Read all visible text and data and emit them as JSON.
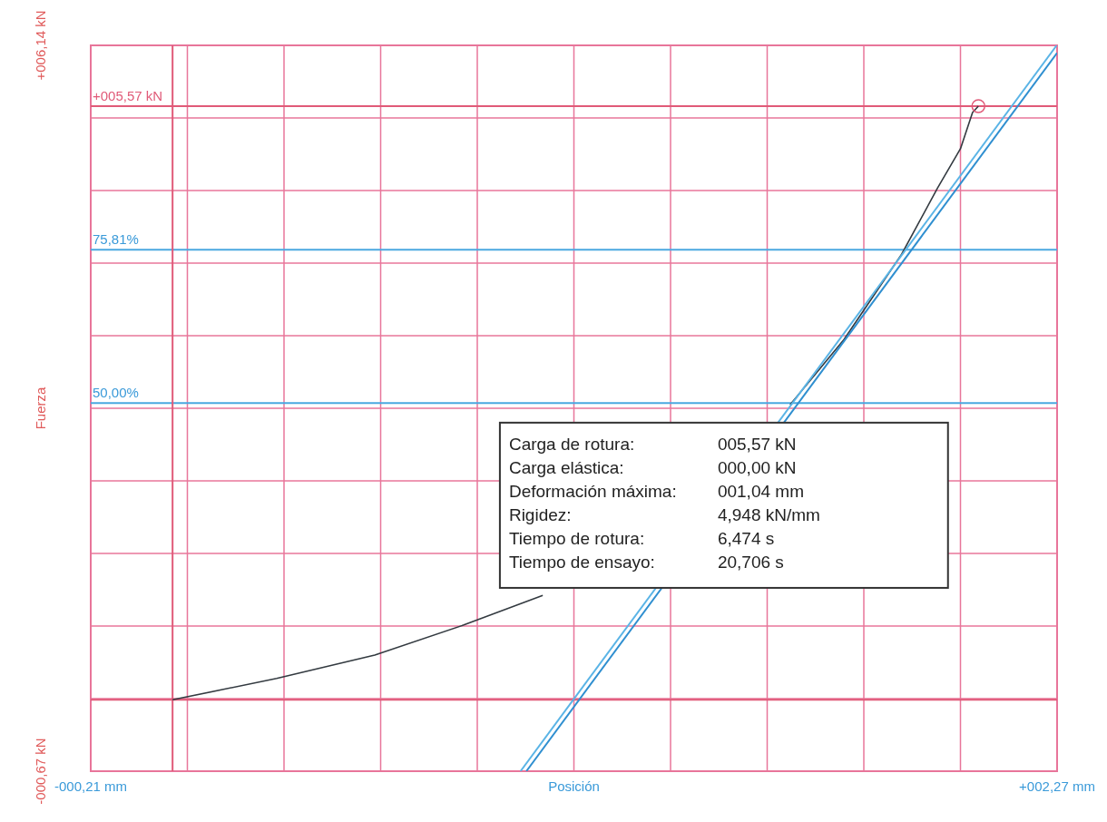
{
  "chart_data": {
    "type": "line",
    "xlabel": "Posición",
    "ylabel": "Fuerza",
    "xlim": [
      -0.21,
      2.27
    ],
    "xticks": [
      {
        "value": -0.21,
        "label": "-000,21 mm"
      },
      {
        "value": 0.038,
        "label": null
      },
      {
        "value": 0.286,
        "label": null
      },
      {
        "value": 0.534,
        "label": null
      },
      {
        "value": 0.782,
        "label": null
      },
      {
        "value": 1.03,
        "label": null
      },
      {
        "value": 1.278,
        "label": null
      },
      {
        "value": 1.526,
        "label": null
      },
      {
        "value": 1.774,
        "label": null
      },
      {
        "value": 2.022,
        "label": null
      },
      {
        "value": 2.27,
        "label": "+002,27 mm"
      }
    ],
    "ylim": [
      -0.67,
      6.14
    ],
    "yticks": [
      {
        "value": -0.67,
        "label": "-000,67 kN"
      },
      {
        "value": 0.011,
        "label": null
      },
      {
        "value": 0.692,
        "label": null
      },
      {
        "value": 1.373,
        "label": null
      },
      {
        "value": 2.054,
        "label": null
      },
      {
        "value": 2.735,
        "label": null
      },
      {
        "value": 3.416,
        "label": null
      },
      {
        "value": 4.097,
        "label": null
      },
      {
        "value": 4.778,
        "label": null
      },
      {
        "value": 5.459,
        "label": null
      },
      {
        "value": 6.14,
        "label": "+006,14 kN"
      }
    ],
    "grid": true,
    "series": [
      {
        "color": "#333a40",
        "x": [
          0,
          0.267,
          0.519,
          0.746,
          0.95,
          1.3,
          1.585,
          1.723,
          1.871,
          1.963,
          2.022,
          2.053,
          2.068
        ],
        "values": [
          0,
          0.2,
          0.42,
          0.7,
          0.98,
          null,
          2.77,
          3.38,
          4.18,
          4.8,
          5.17,
          5.51,
          5.57
        ]
      },
      {
        "color": "#5ab4e6",
        "x": [
          0.893,
          2.269
        ],
        "values": [
          -0.67,
          6.14
        ]
      },
      {
        "color": "#2f8fd0",
        "x": [
          0.908,
          2.27
        ],
        "values": [
          -0.67,
          6.07
        ]
      },
      {
        "type": "scatter",
        "marker": "circle",
        "color": "#e05a78",
        "x": [
          2.068
        ],
        "values": [
          5.57
        ]
      }
    ],
    "ref_lines": [
      {
        "axis": "y",
        "value": 5.57,
        "label": "+005,57 kN",
        "color": "#e05a78"
      },
      {
        "axis": "y",
        "value": 4.222,
        "color": "#4aa8e0"
      },
      {
        "axis": "y",
        "value": 2.785,
        "color": "#4aa8e0"
      },
      {
        "axis": "y",
        "value": 0,
        "color": "#e05a78"
      },
      {
        "axis": "x",
        "value": 0,
        "color": "#e05a78"
      }
    ],
    "annotations": [
      {
        "text": "75,81%",
        "x": -0.21,
        "y": 4.222
      },
      {
        "text": "50,00%",
        "x": -0.21,
        "y": 2.785
      },
      "Carga de rotura:",
      "005,57 kN",
      "Carga elástica:",
      "000,00 kN",
      "Deformación máxima:",
      "001,04 mm",
      "Rigidez:",
      "4,948 kN/mm",
      "Tiempo de rotura:",
      "6,474 s",
      "Tiempo de ensayo:",
      "20,706 s"
    ]
  }
}
